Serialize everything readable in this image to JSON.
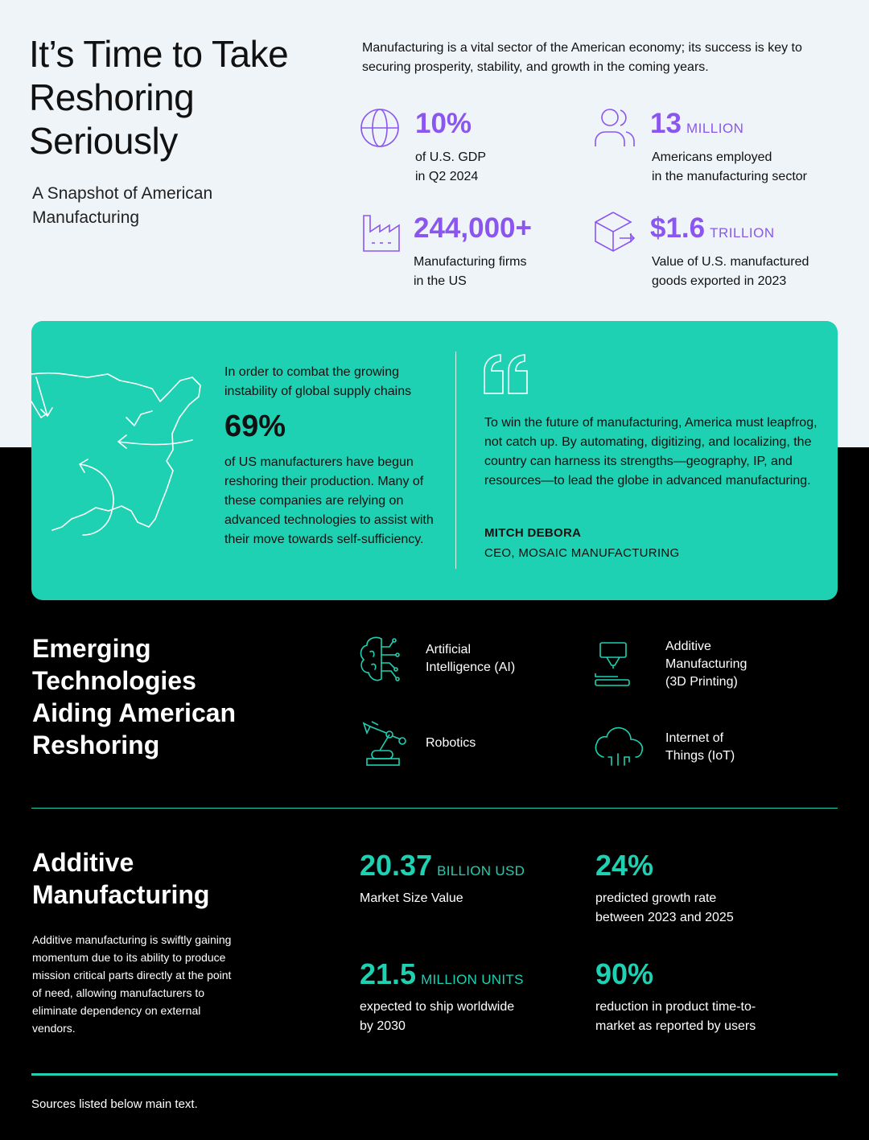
{
  "header": {
    "title": "It’s Time to Take Reshoring Seriously",
    "subtitle": "A Snapshot of American Manufacturing",
    "intro": "Manufacturing is a vital sector of the American economy; its success is key to securing prosperity, stability, and growth in the coming years."
  },
  "stats": [
    {
      "icon": "globe-icon",
      "value": "10%",
      "unit": "",
      "desc": "of U.S. GDP\nin Q2 2024"
    },
    {
      "icon": "people-icon",
      "value": "13",
      "unit": "MILLION",
      "desc": "Americans employed\nin the manufacturing sector"
    },
    {
      "icon": "factory-icon",
      "value": "244,000+",
      "unit": "",
      "desc": "Manufacturing firms\nin the US"
    },
    {
      "icon": "box-export-icon",
      "value": "$1.6",
      "unit": "TRILLION",
      "desc": "Value of U.S. manufactured\ngoods exported in 2023"
    }
  ],
  "reshoring": {
    "lead": "In order to combat the growing instability of global supply chains",
    "value": "69%",
    "body": "of US manufacturers have begun reshoring their production. Many of these companies are relying on advanced technologies to assist with their move towards self-sufficiency.",
    "quote": "To win the future of manufacturing, America must leapfrog, not catch up. By automating, digitizing, and localizing, the country can harness its strengths—geography, IP, and resources—to lead the globe in advanced manufacturing.",
    "quote_name": "MITCH DEBORA",
    "quote_role": "CEO, MOSAIC MANUFACTURING"
  },
  "technologies": {
    "heading": "Emerging Technologies Aiding American Reshoring",
    "items": [
      {
        "icon": "ai-brain-icon",
        "label": "Artificial\nIntelligence (AI)"
      },
      {
        "icon": "3d-printer-icon",
        "label": "Additive\nManufacturing\n(3D Printing)"
      },
      {
        "icon": "robot-arm-icon",
        "label": "Robotics"
      },
      {
        "icon": "cloud-iot-icon",
        "label": "Internet of\nThings (IoT)"
      }
    ]
  },
  "additive": {
    "heading": "Additive Manufacturing",
    "description": "Additive manufacturing is swiftly gaining momentum due to its ability to produce mission critical parts directly at the point of need, allowing manufacturers to eliminate dependency on external vendors.",
    "stats": [
      {
        "value": "20.37",
        "unit": "BILLION USD",
        "label": "Market Size Value"
      },
      {
        "value": "24%",
        "unit": "",
        "label": "predicted growth rate\nbetween 2023 and 2025"
      },
      {
        "value": "21.5",
        "unit": "MILLION UNITS",
        "label": "expected to ship worldwide\nby 2030"
      },
      {
        "value": "90%",
        "unit": "",
        "label": "reduction in product time-to-\nmarket as reported by users"
      }
    ]
  },
  "footer": {
    "sources": "Sources listed below main text."
  },
  "colors": {
    "purple": "#8b56f0",
    "teal": "#1dd1b2",
    "light_bg": "#eff4f8",
    "dark_bg": "#000000"
  }
}
